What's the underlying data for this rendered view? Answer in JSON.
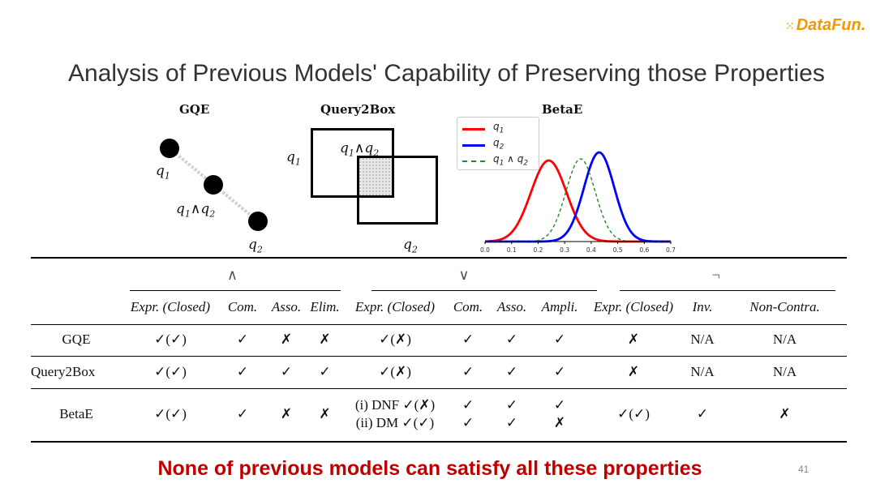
{
  "logo": "DataFun.",
  "title": "Analysis of Previous Models' Capability of Preserving those Properties",
  "panels": {
    "gqe": {
      "label": "GQE",
      "q1": "q",
      "q1_sub": "1",
      "q2": "q",
      "q2_sub": "2"
    },
    "q2b": {
      "label": "Query2Box"
    },
    "betae": {
      "label": "BetaE",
      "legend": [
        {
          "name": "q₁",
          "color": "#ff0000",
          "style": "solid"
        },
        {
          "name": "q₂",
          "color": "#0000ff",
          "style": "solid"
        },
        {
          "name": "q₁ ∧ q₂",
          "color": "#228b22",
          "style": "dashed"
        }
      ],
      "ticks": [
        "0.0",
        "0.1",
        "0.2",
        "0.3",
        "0.4",
        "0.5",
        "0.6",
        "0.7"
      ]
    }
  },
  "chart_data": {
    "type": "line",
    "title": "BetaE",
    "xlim": [
      0.0,
      0.7
    ],
    "x_ticks": [
      "0.0",
      "0.1",
      "0.2",
      "0.3",
      "0.4",
      "0.5",
      "0.6",
      "0.7"
    ],
    "legend_position": "top-left",
    "series": [
      {
        "name": "q₁",
        "color": "#ff0000",
        "dash": false,
        "mean": 0.24,
        "sd": 0.067,
        "peak": 1.0
      },
      {
        "name": "q₂",
        "color": "#0000ff",
        "dash": false,
        "mean": 0.43,
        "sd": 0.057,
        "peak": 1.1
      },
      {
        "name": "q₁ ∧ q₂",
        "color": "#228b22",
        "dash": true,
        "mean": 0.36,
        "sd": 0.055,
        "peak": 1.02
      }
    ]
  },
  "table": {
    "groups": [
      "∧",
      "∨",
      "¬"
    ],
    "headers": [
      "",
      "Expr. (Closed)",
      "Com.",
      "Asso.",
      "Elim.",
      "Expr. (Closed)",
      "Com.",
      "Asso.",
      "Ampli.",
      "Expr. (Closed)",
      "Inv.",
      "Non-Contra."
    ],
    "rows": [
      {
        "name": "GQE",
        "cells": [
          "✓(✓)",
          "✓",
          "✗",
          "✗",
          "✓(✗)",
          "✓",
          "✓",
          "✓",
          "✗",
          "N/A",
          "N/A"
        ]
      },
      {
        "name": "Query2Box",
        "cells": [
          "✓(✓)",
          "✓",
          "✓",
          "✓",
          "✓(✗)",
          "✓",
          "✓",
          "✓",
          "✗",
          "N/A",
          "N/A"
        ]
      },
      {
        "name": "BetaE",
        "cells": [
          "✓(✓)",
          "✓",
          "✗",
          "✗",
          "(i) DNF ✓(✗)|(ii) DM ✓(✓)",
          "✓|✓",
          "✓|✓",
          "✓|✗",
          "✓(✓)",
          "✓",
          "✗"
        ]
      }
    ]
  },
  "footer": "None of previous models can satisfy all these properties",
  "page_number": "41"
}
